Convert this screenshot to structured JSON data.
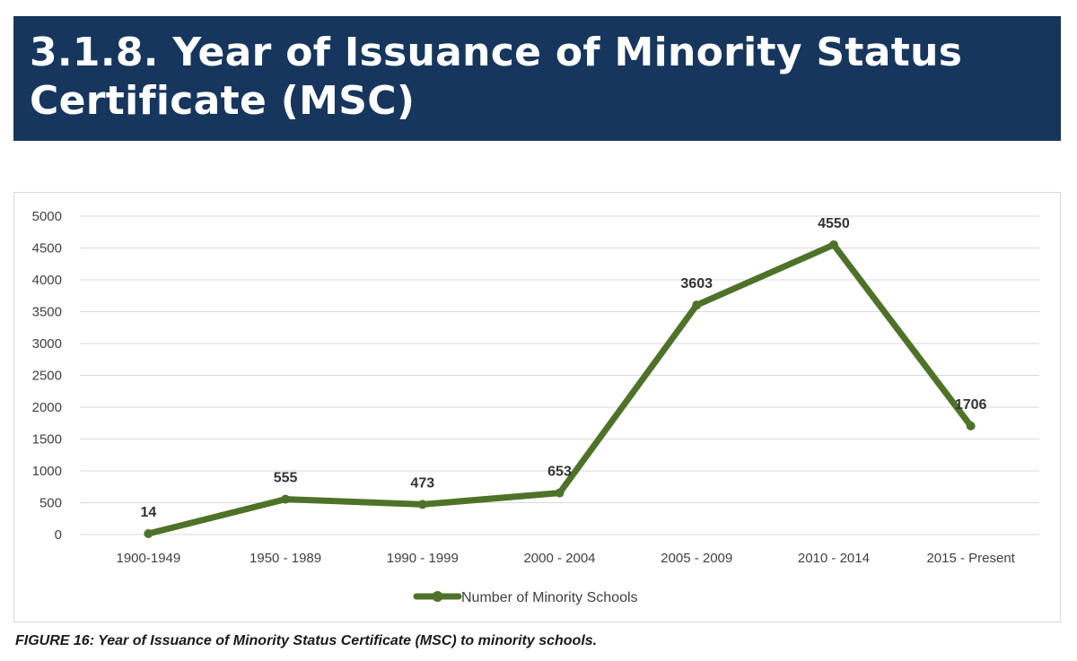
{
  "header": {
    "title": "3.1.8. Year of Issuance of Minority Status Certificate (MSC)"
  },
  "chart_data": {
    "type": "line",
    "title": "",
    "xlabel": "",
    "ylabel": "",
    "categories": [
      "1900-1949",
      "1950 - 1989",
      "1990 - 1999",
      "2000 - 2004",
      "2005 - 2009",
      "2010 - 2014",
      "2015 - Present"
    ],
    "series": [
      {
        "name": "Number of Minority Schools",
        "values": [
          14,
          555,
          473,
          653,
          3603,
          4550,
          1706
        ],
        "color": "#4f7229"
      }
    ],
    "ylim": [
      0,
      5000
    ],
    "yticks": [
      0,
      500,
      1000,
      1500,
      2000,
      2500,
      3000,
      3500,
      4000,
      4500,
      5000
    ],
    "grid": true,
    "legend": "bottom",
    "data_labels": true
  },
  "caption": {
    "text": "FIGURE 16: Year of Issuance of Minority Status Certificate (MSC) to minority schools."
  },
  "colors": {
    "banner": "#17365d",
    "line": "#4f7229",
    "grid": "#d9d9d9",
    "tick_text": "#404040"
  }
}
